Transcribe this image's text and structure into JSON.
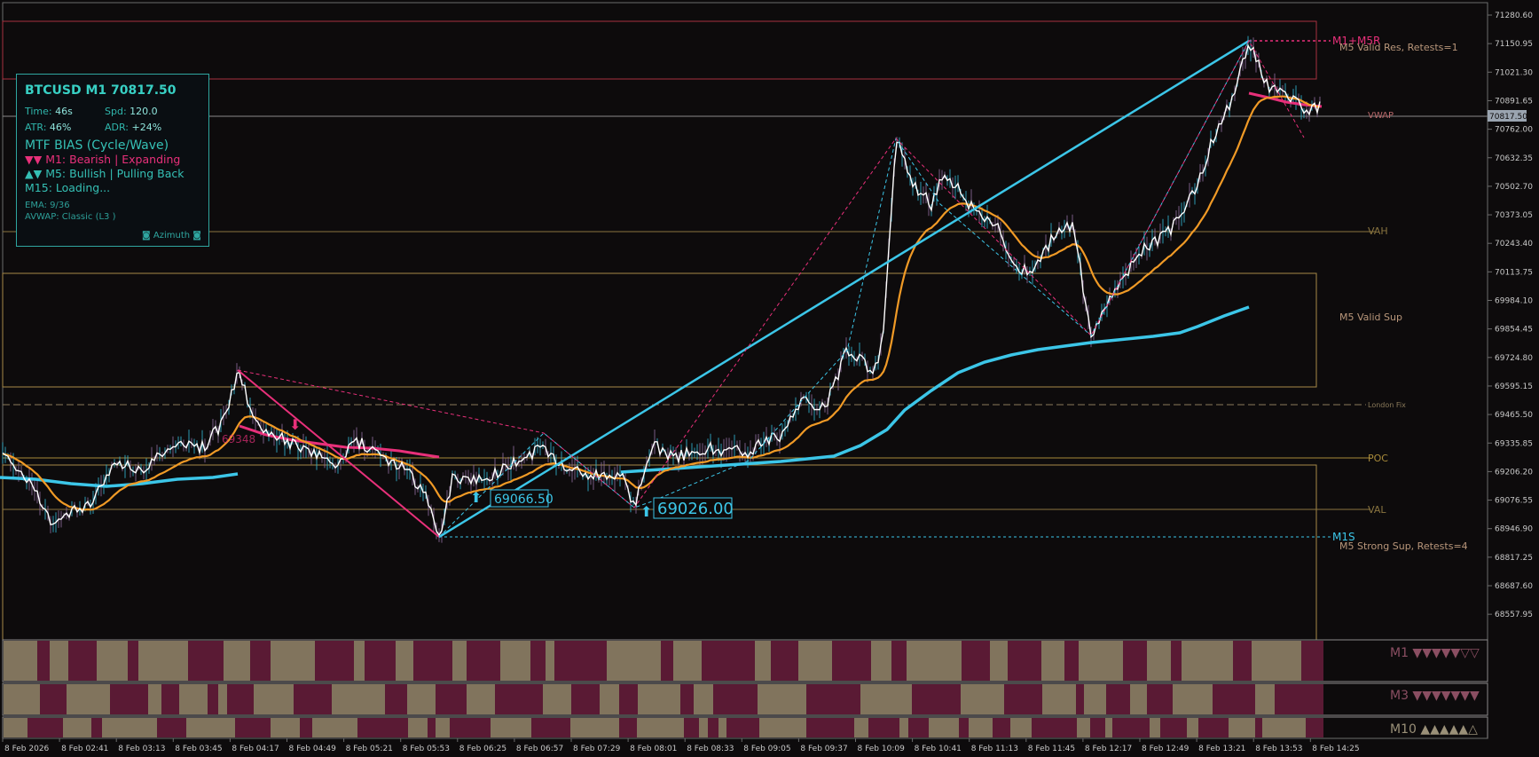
{
  "chart": {
    "symbol_line": "BTCUSD M1 70817.50",
    "current_price_tag": "70817.50",
    "colors": {
      "background": "#0d0b0c",
      "price_line": "#ffffff",
      "fast_ema": "#f09a26",
      "avwap": "#3cc6e8",
      "bear": "#e8307a",
      "bull": "#32c8dc",
      "zone_res": "#b03848",
      "zone_sup": "#b8974a"
    }
  },
  "info_panel": {
    "title": "BTCUSD M1 70817.50",
    "time_label": "Time:",
    "time_value": "46s",
    "spd_label": "Spd:",
    "spd_value": "120.0",
    "atr_label": "ATR:",
    "atr_value": "46%",
    "adr_label": "ADR:",
    "adr_value": "+24%",
    "bias_title": "MTF BIAS (Cycle/Wave)",
    "m1": "▼▼ M1: Bearish | Expanding",
    "m5": "▲▼ M5: Bullish | Pulling Back",
    "m15": "M15: Loading...",
    "ema": "EMA: 9/36",
    "avwap": "AVWAP: Classic (L3 )",
    "brand": "◙ Azimuth ◙"
  },
  "y_axis": {
    "ticks": [
      "71280.60",
      "71150.95",
      "71021.30",
      "70891.65",
      "70762.00",
      "70632.35",
      "70502.70",
      "70373.05",
      "70243.40",
      "70113.75",
      "69984.10",
      "69854.45",
      "69724.80",
      "69595.15",
      "69465.50",
      "69335.85",
      "69206.20",
      "69076.55",
      "68946.90",
      "68817.25",
      "68687.60",
      "68557.95"
    ]
  },
  "x_axis": {
    "ticks": [
      "8 Feb 2026",
      "8 Feb 02:41",
      "8 Feb 03:13",
      "8 Feb 03:45",
      "8 Feb 04:17",
      "8 Feb 04:49",
      "8 Feb 05:21",
      "8 Feb 05:53",
      "8 Feb 06:25",
      "8 Feb 06:57",
      "8 Feb 07:29",
      "8 Feb 08:01",
      "8 Feb 08:33",
      "8 Feb 09:05",
      "8 Feb 09:37",
      "8 Feb 10:09",
      "8 Feb 10:41",
      "8 Feb 11:13",
      "8 Feb 11:45",
      "8 Feb 12:17",
      "8 Feb 12:49",
      "8 Feb 13:21",
      "8 Feb 13:53",
      "8 Feb 14:25"
    ]
  },
  "labels": {
    "m1_m5r": "M1+M5R",
    "m5_valid_res": "M5 Valid Res, Retests=1",
    "vwap": "VWAP",
    "vah": "VAH",
    "m5_valid_sup": "M5 Valid Sup",
    "london_fix": "London Fix",
    "poc": "POC",
    "val": "VAL",
    "m1s": "M1S",
    "m5_strong_sup": "M5 Strong Sup, Retests=4",
    "swing_low_1": "69066.50",
    "swing_low_2": "69026.00",
    "mid_price_tag": "69348"
  },
  "subpanels": [
    {
      "label": "M1 ▼▼▼▼▼▽▽"
    },
    {
      "label": "M3 ▼▼▼▼▼▼▼"
    },
    {
      "label": "M10 ▲▲▲▲▲△"
    }
  ]
}
